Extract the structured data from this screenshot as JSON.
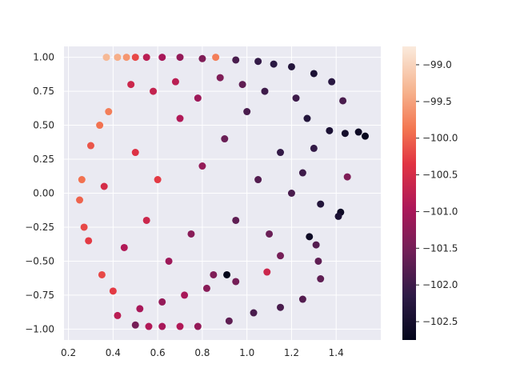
{
  "chart_data": {
    "type": "scatter",
    "title": "",
    "xlabel": "",
    "ylabel": "",
    "xlim": [
      0.18,
      1.6
    ],
    "ylim": [
      -1.08,
      1.08
    ],
    "xticks": [
      0.2,
      0.4,
      0.6,
      0.8,
      1.0,
      1.2,
      1.4
    ],
    "xtick_labels": [
      "0.2",
      "0.4",
      "0.6",
      "0.8",
      "1.0",
      "1.2",
      "1.4"
    ],
    "yticks": [
      -1.0,
      -0.75,
      -0.5,
      -0.25,
      0.0,
      0.25,
      0.5,
      0.75,
      1.0
    ],
    "ytick_labels": [
      "−1.00",
      "−0.75",
      "−0.50",
      "−0.25",
      "0.00",
      "0.25",
      "0.50",
      "0.75",
      "1.00"
    ],
    "grid": true,
    "colormap": "rocket",
    "colorbar": {
      "range": [
        -102.75,
        -98.75
      ],
      "ticks": [
        -99.0,
        -99.5,
        -100.0,
        -100.5,
        -101.0,
        -101.5,
        -102.0,
        -102.5
      ],
      "tick_labels": [
        "−99.0",
        "−99.5",
        "−100.0",
        "−100.5",
        "−101.0",
        "−101.5",
        "−102.0",
        "−102.5"
      ]
    },
    "points": [
      {
        "x": 0.37,
        "y": 1.0,
        "c": -99.3
      },
      {
        "x": 0.42,
        "y": 1.0,
        "c": -99.4
      },
      {
        "x": 0.46,
        "y": 1.0,
        "c": -99.6
      },
      {
        "x": 0.5,
        "y": 1.0,
        "c": -100.2
      },
      {
        "x": 0.55,
        "y": 1.0,
        "c": -100.8
      },
      {
        "x": 0.62,
        "y": 1.0,
        "c": -101.0
      },
      {
        "x": 0.7,
        "y": 1.0,
        "c": -101.2
      },
      {
        "x": 0.8,
        "y": 0.99,
        "c": -101.4
      },
      {
        "x": 0.86,
        "y": 1.0,
        "c": -99.8
      },
      {
        "x": 0.95,
        "y": 0.98,
        "c": -101.9
      },
      {
        "x": 1.05,
        "y": 0.97,
        "c": -102.1
      },
      {
        "x": 1.12,
        "y": 0.95,
        "c": -102.2
      },
      {
        "x": 1.2,
        "y": 0.93,
        "c": -102.3
      },
      {
        "x": 1.3,
        "y": 0.88,
        "c": -102.4
      },
      {
        "x": 1.38,
        "y": 0.82,
        "c": -102.2
      },
      {
        "x": 1.43,
        "y": 0.68,
        "c": -101.9
      },
      {
        "x": 1.5,
        "y": 0.45,
        "c": -102.6
      },
      {
        "x": 1.53,
        "y": 0.42,
        "c": -102.7
      },
      {
        "x": 1.44,
        "y": 0.44,
        "c": -102.5
      },
      {
        "x": 1.37,
        "y": 0.46,
        "c": -102.4
      },
      {
        "x": 1.45,
        "y": 0.12,
        "c": -101.4
      },
      {
        "x": 1.42,
        "y": -0.14,
        "c": -102.6
      },
      {
        "x": 1.41,
        "y": -0.17,
        "c": -102.4
      },
      {
        "x": 1.33,
        "y": -0.08,
        "c": -102.3
      },
      {
        "x": 1.3,
        "y": 0.33,
        "c": -102.1
      },
      {
        "x": 1.27,
        "y": 0.55,
        "c": -102.3
      },
      {
        "x": 1.22,
        "y": 0.7,
        "c": -102.0
      },
      {
        "x": 1.33,
        "y": -0.63,
        "c": -101.7
      },
      {
        "x": 1.32,
        "y": -0.5,
        "c": -101.7
      },
      {
        "x": 1.31,
        "y": -0.38,
        "c": -101.8
      },
      {
        "x": 1.25,
        "y": -0.78,
        "c": -101.8
      },
      {
        "x": 1.15,
        "y": -0.84,
        "c": -101.9
      },
      {
        "x": 1.03,
        "y": -0.88,
        "c": -101.9
      },
      {
        "x": 0.92,
        "y": -0.94,
        "c": -101.7
      },
      {
        "x": 0.91,
        "y": -0.6,
        "c": -102.8
      },
      {
        "x": 1.28,
        "y": -0.32,
        "c": -102.6
      },
      {
        "x": 1.09,
        "y": -0.58,
        "c": -100.6
      },
      {
        "x": 1.15,
        "y": -0.46,
        "c": -101.5
      },
      {
        "x": 0.5,
        "y": -0.97,
        "c": -101.5
      },
      {
        "x": 0.56,
        "y": -0.98,
        "c": -100.9
      },
      {
        "x": 0.62,
        "y": -0.98,
        "c": -101.0
      },
      {
        "x": 0.7,
        "y": -0.98,
        "c": -100.9
      },
      {
        "x": 0.78,
        "y": -0.98,
        "c": -101.2
      },
      {
        "x": 0.26,
        "y": 0.1,
        "c": -99.9
      },
      {
        "x": 0.25,
        "y": -0.05,
        "c": -100.0
      },
      {
        "x": 0.27,
        "y": -0.25,
        "c": -100.2
      },
      {
        "x": 0.29,
        "y": -0.35,
        "c": -100.3
      },
      {
        "x": 0.3,
        "y": 0.35,
        "c": -100.1
      },
      {
        "x": 0.35,
        "y": -0.6,
        "c": -100.2
      },
      {
        "x": 0.4,
        "y": -0.72,
        "c": -100.3
      },
      {
        "x": 0.34,
        "y": 0.5,
        "c": -99.9
      },
      {
        "x": 0.38,
        "y": 0.6,
        "c": -99.8
      },
      {
        "x": 0.36,
        "y": 0.05,
        "c": -100.5
      },
      {
        "x": 0.45,
        "y": -0.4,
        "c": -100.9
      },
      {
        "x": 0.5,
        "y": 0.3,
        "c": -100.4
      },
      {
        "x": 0.55,
        "y": -0.2,
        "c": -100.6
      },
      {
        "x": 0.6,
        "y": 0.1,
        "c": -100.3
      },
      {
        "x": 0.65,
        "y": -0.5,
        "c": -101.1
      },
      {
        "x": 0.7,
        "y": 0.55,
        "c": -100.9
      },
      {
        "x": 0.75,
        "y": -0.3,
        "c": -101.3
      },
      {
        "x": 0.8,
        "y": 0.2,
        "c": -101.2
      },
      {
        "x": 0.85,
        "y": -0.6,
        "c": -101.4
      },
      {
        "x": 0.9,
        "y": 0.4,
        "c": -101.6
      },
      {
        "x": 0.95,
        "y": -0.2,
        "c": -101.7
      },
      {
        "x": 1.0,
        "y": 0.6,
        "c": -101.9
      },
      {
        "x": 1.05,
        "y": 0.1,
        "c": -101.8
      },
      {
        "x": 1.1,
        "y": -0.3,
        "c": -101.6
      },
      {
        "x": 1.15,
        "y": 0.3,
        "c": -102.1
      },
      {
        "x": 1.2,
        "y": 0.0,
        "c": -101.9
      },
      {
        "x": 1.25,
        "y": 0.15,
        "c": -102.0
      },
      {
        "x": 0.48,
        "y": 0.8,
        "c": -100.6
      },
      {
        "x": 0.58,
        "y": 0.75,
        "c": -100.7
      },
      {
        "x": 0.68,
        "y": 0.82,
        "c": -100.8
      },
      {
        "x": 0.78,
        "y": 0.7,
        "c": -101.1
      },
      {
        "x": 0.88,
        "y": 0.85,
        "c": -101.4
      },
      {
        "x": 0.98,
        "y": 0.8,
        "c": -101.7
      },
      {
        "x": 1.08,
        "y": 0.75,
        "c": -102.0
      },
      {
        "x": 0.42,
        "y": -0.9,
        "c": -100.8
      },
      {
        "x": 0.52,
        "y": -0.85,
        "c": -101.0
      },
      {
        "x": 0.62,
        "y": -0.8,
        "c": -101.2
      },
      {
        "x": 0.72,
        "y": -0.75,
        "c": -101.0
      },
      {
        "x": 0.82,
        "y": -0.7,
        "c": -101.3
      },
      {
        "x": 0.95,
        "y": -0.65,
        "c": -101.5
      }
    ]
  }
}
